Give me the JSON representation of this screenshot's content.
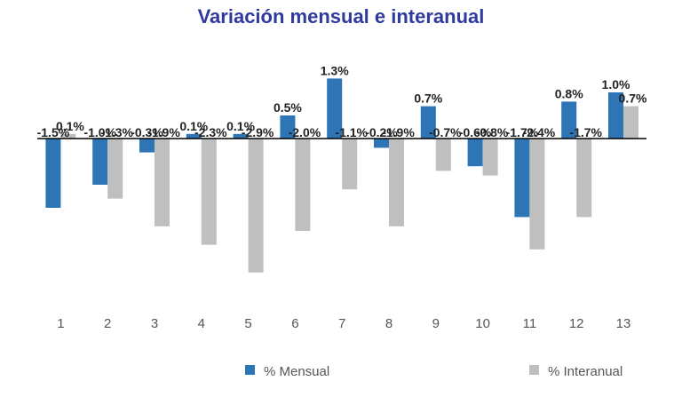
{
  "chart_data": {
    "type": "bar",
    "title": "Variación mensual e interanual",
    "xlabel": "",
    "ylabel": "",
    "categories": [
      "1",
      "2",
      "3",
      "4",
      "5",
      "6",
      "7",
      "8",
      "9",
      "10",
      "11",
      "12",
      "13"
    ],
    "series": [
      {
        "name": "% Mensual",
        "color": "#2e75b6",
        "values": [
          -1.5,
          -1.0,
          -0.3,
          0.1,
          0.1,
          0.5,
          1.3,
          -0.2,
          0.7,
          -0.6,
          -1.7,
          0.8,
          1.0
        ],
        "labels": [
          "-1.5%",
          "-1.0%",
          "-0.3%",
          "0.1%",
          "0.1%",
          "0.5%",
          "1.3%",
          "-0.2%",
          "0.7%",
          "-0.6%",
          "-1.7%",
          "0.8%",
          "1.0%"
        ]
      },
      {
        "name": "% Interanual",
        "color": "#bfbfbf",
        "values": [
          0.1,
          -1.3,
          -1.9,
          -2.3,
          -2.9,
          -2.0,
          -1.1,
          -1.9,
          -0.7,
          -0.8,
          -2.4,
          -1.7,
          0.7
        ],
        "labels": [
          "0.1%",
          "-1.3%",
          "-1.9%",
          "-2.3%",
          "-2.9%",
          "-2.0%",
          "-1.1%",
          "-1.9%",
          "-0.7%",
          "-0.8%",
          "-2.4%",
          "-1.7%",
          "0.7%"
        ]
      }
    ],
    "ylim": [
      -3.5,
      1.5
    ],
    "grid": false,
    "legend": "bottom"
  }
}
